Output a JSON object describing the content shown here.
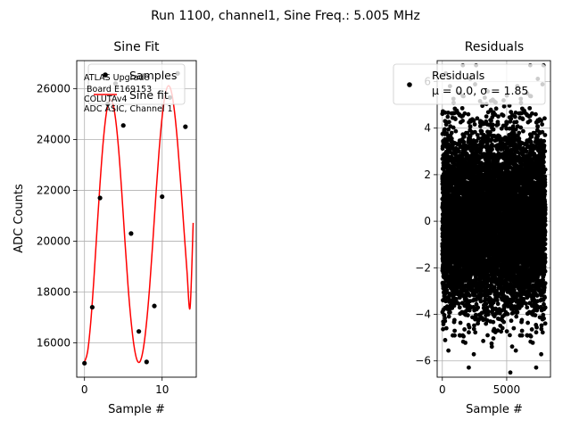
{
  "figure": {
    "suptitle": "Run 1100, channel1, Sine Freq.: 5.005 MHz"
  },
  "chart_data": [
    {
      "type": "line",
      "title": "Sine Fit",
      "xlabel": "Sample #",
      "ylabel": "ADC Counts",
      "xlim": [
        -1,
        14.4
      ],
      "ylim": [
        14650,
        27100
      ],
      "xticks": [
        0,
        10
      ],
      "yticks": [
        16000,
        18000,
        20000,
        22000,
        24000,
        26000
      ],
      "grid": true,
      "legend_position": "top",
      "series": [
        {
          "name": "Samples",
          "kind": "scatter",
          "color": "#000000",
          "x": [
            0,
            1,
            2,
            3,
            4,
            5,
            6,
            7,
            8,
            9,
            10,
            11,
            12,
            13
          ],
          "y": [
            15200,
            17400,
            21700,
            25400,
            26200,
            24550,
            20300,
            16450,
            15250,
            17450,
            21750,
            25650,
            26600,
            24500
          ]
        },
        {
          "name": "Sine fit",
          "kind": "line",
          "color": "#ff0000",
          "x": [
            0,
            0.4,
            0.8,
            1.2,
            1.6,
            2.0,
            2.4,
            2.8,
            3.2,
            3.6,
            4.0,
            4.4,
            4.8,
            5.2,
            5.6,
            6.0,
            6.4,
            6.8,
            7.2,
            7.6,
            8.0,
            8.4,
            8.8,
            9.2,
            9.6,
            10.0,
            10.4,
            10.8,
            11.2,
            11.6,
            12.0,
            12.4,
            12.8,
            13.2,
            13.6,
            14.0
          ],
          "y": [
            15240,
            15650,
            16790,
            18460,
            20390,
            22260,
            23870,
            25000,
            25520,
            25460,
            24810,
            23600,
            21930,
            20050,
            18280,
            16860,
            15840,
            15300,
            15290,
            15810,
            16820,
            18230,
            19970,
            21820,
            23520,
            24880,
            25770,
            26110,
            25870,
            25080,
            23830,
            22250,
            20520,
            18830,
            17380,
            20720
          ]
        }
      ],
      "annotation": [
        "ATLAS Upgrade",
        " Board E169153",
        "COLUTAv4",
        "ADC ASIC, Channel 1"
      ]
    },
    {
      "type": "scatter",
      "title": "Residuals",
      "xlabel": "Sample #",
      "ylabel": "",
      "xlim": [
        -400,
        8400
      ],
      "ylim": [
        -6.7,
        6.9
      ],
      "xticks": [
        0,
        5000
      ],
      "yticks": [
        -6,
        -4,
        -2,
        0,
        2,
        4,
        6
      ],
      "grid": true,
      "legend_position": "top-right",
      "series": [
        {
          "name": "Residuals",
          "color": "#000000",
          "n_points": 8000,
          "mean": 0.0,
          "sigma": 1.85,
          "x_range": [
            0,
            8000
          ]
        }
      ],
      "legend_label_line1": "Residuals",
      "legend_label_line2": "μ = 0.0, σ = 1.85"
    }
  ]
}
